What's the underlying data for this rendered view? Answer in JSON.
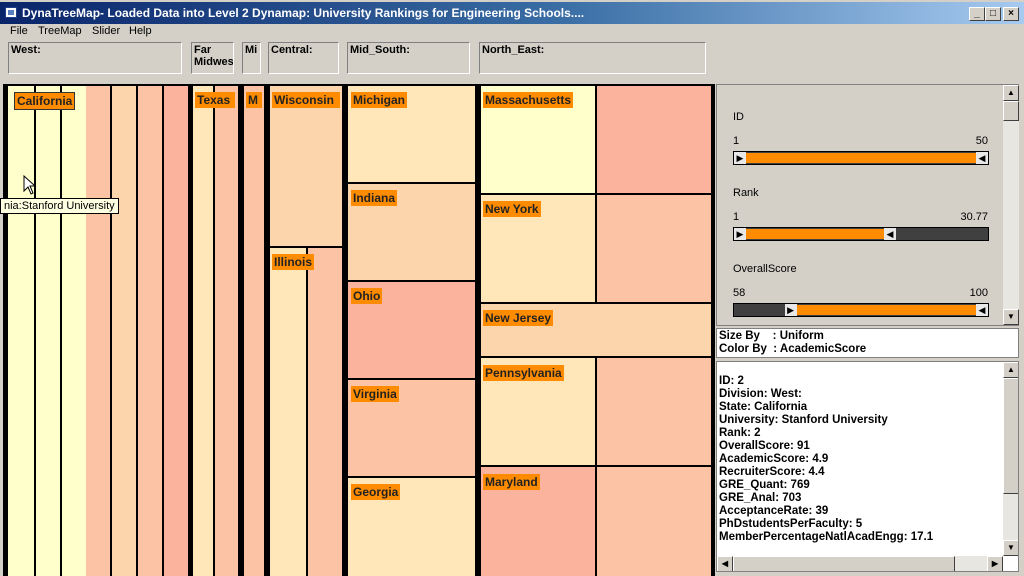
{
  "window": {
    "title": "DynaTreeMap- Loaded Data into Level 2 Dynamap:  University Rankings for Engineering Schools....",
    "buttons": [
      "_",
      "□",
      "×"
    ]
  },
  "menu": [
    "File",
    "TreeMap",
    "Slider",
    "Help"
  ],
  "divisions": [
    {
      "label": "West:"
    },
    {
      "label": "Far Midwest"
    },
    {
      "label": "Mi"
    },
    {
      "label": "Central:"
    },
    {
      "label": "Mid_South:"
    },
    {
      "label": "North_East:"
    }
  ],
  "treemap": {
    "state_labels": {
      "california": "California",
      "texas": "Texas",
      "m": "M",
      "wisconsin": "Wisconsin",
      "illinois": "Illinois",
      "michigan": "Michigan",
      "indiana": "Indiana",
      "ohio": "Ohio",
      "virginia": "Virginia",
      "georgia": "Georgia",
      "massachusetts": "Massachusetts",
      "new_york": "New York",
      "new_jersey": "New Jersey",
      "pennsylvania": "Pennsylvania",
      "maryland": "Maryland"
    },
    "tooltip": "nia:Stanford University",
    "colors": {
      "pale": "#ffffcc",
      "light": "#ffe7b9",
      "mid": "#fdd5ad",
      "salmon": "#fcc3a5",
      "deep": "#fbb39e",
      "label": "#ff8c00"
    }
  },
  "sliders": [
    {
      "label": "ID",
      "min": "1",
      "max": "50",
      "low": 0.0,
      "high": 1.0
    },
    {
      "label": "Rank",
      "min": "1",
      "max": "30.77",
      "low": 0.0,
      "high": 0.6
    },
    {
      "label": "OverallScore",
      "min": "58",
      "max": "100",
      "low": 0.22,
      "high": 1.0
    }
  ],
  "sizeby": {
    "size_line": "Size By    : Uniform",
    "color_line": "Color By  : AcademicScore"
  },
  "details": [
    "ID: 2",
    "Division: West:",
    "State: California",
    "University: Stanford University",
    "Rank: 2",
    "OverallScore: 91",
    "AcademicScore: 4.9",
    "RecruiterScore: 4.4",
    "GRE_Quant: 769",
    "GRE_Anal: 703",
    "AcceptanceRate: 39",
    "PhDstudentsPerFaculty: 5",
    "MemberPercentageNatlAcadEngg: 17.1"
  ]
}
